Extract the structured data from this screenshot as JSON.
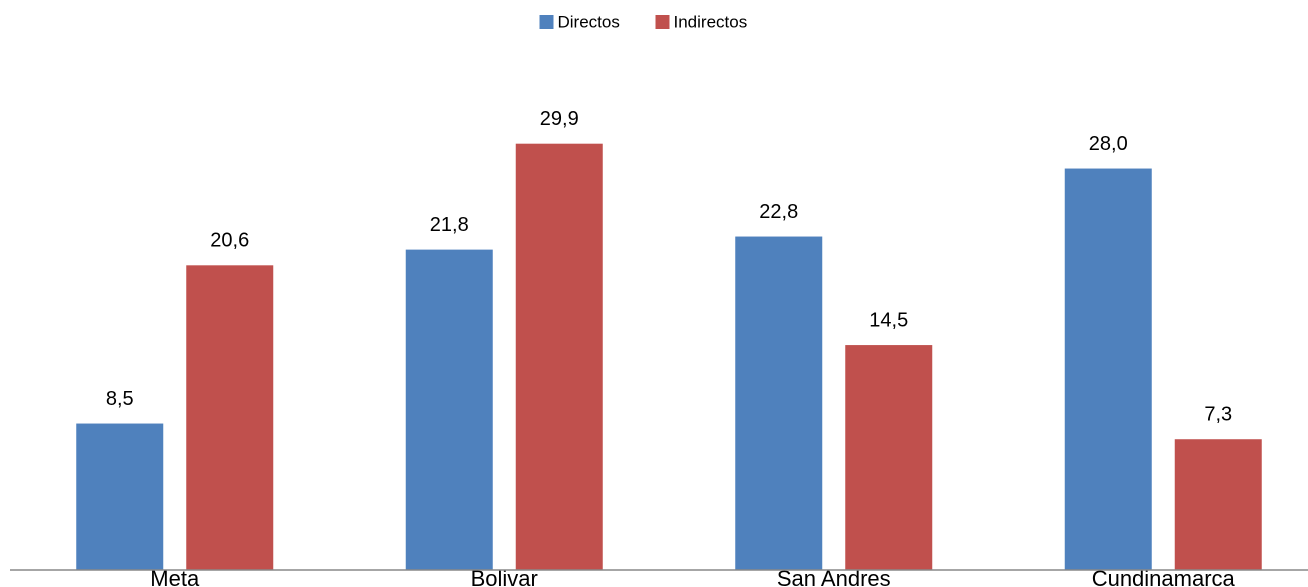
{
  "chart_data": {
    "type": "bar",
    "categories": [
      "Meta",
      "Bolivar",
      "San Andres",
      "Cundinamarca"
    ],
    "series": [
      {
        "name": "Directos",
        "color": "#4f81bd",
        "values": [
          8.5,
          21.8,
          22.8,
          28.0
        ],
        "value_labels": [
          "8,5",
          "21,8",
          "22,8",
          "28,0"
        ]
      },
      {
        "name": "Indirectos",
        "color": "#c0504d",
        "values": [
          20.6,
          29.9,
          14.5,
          7.3
        ],
        "value_labels": [
          "20,6",
          "29,9",
          "14,5",
          "7,3"
        ]
      }
    ],
    "ylim": [
      -2.7,
      35
    ],
    "legend": "top"
  }
}
